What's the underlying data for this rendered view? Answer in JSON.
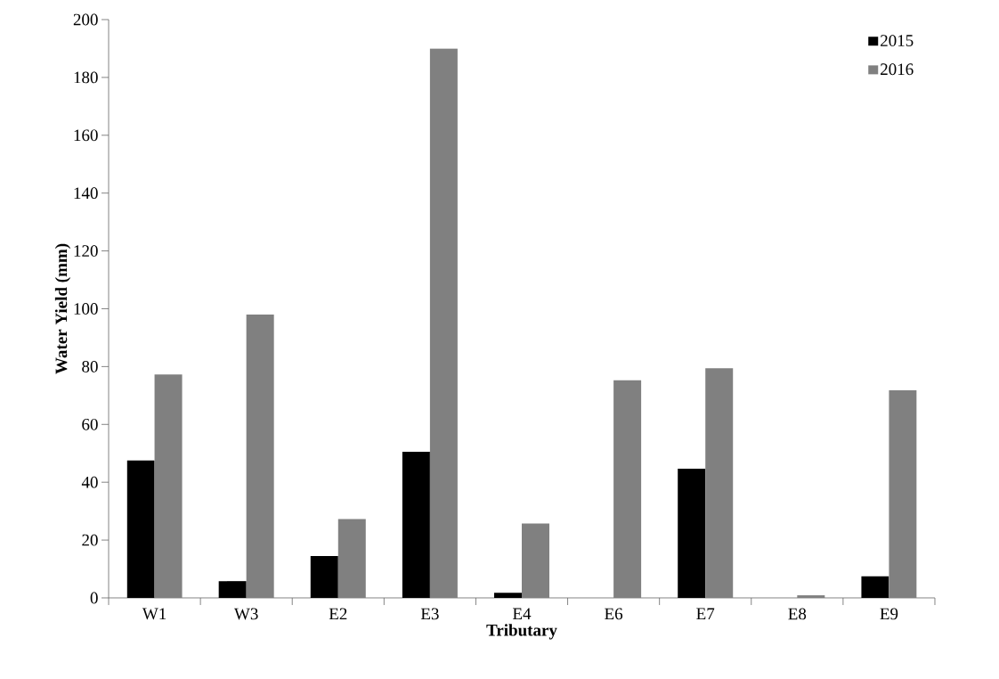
{
  "chart_data": {
    "type": "bar",
    "xlabel": "Tributary",
    "ylabel": "Water Yield (mm)",
    "categories": [
      "W1",
      "W3",
      "E2",
      "E3",
      "E4",
      "E6",
      "E7",
      "E8",
      "E9"
    ],
    "series": [
      {
        "name": "2015",
        "color": "#000000",
        "values": [
          47.5,
          5.8,
          14.5,
          50.5,
          1.8,
          0,
          44.7,
          0,
          7.5
        ]
      },
      {
        "name": "2016",
        "color": "#808080",
        "values": [
          77.3,
          98,
          27.3,
          190,
          25.7,
          75.3,
          79.4,
          0.9,
          71.8
        ]
      }
    ],
    "ylim": [
      0,
      200
    ],
    "yticks": [
      0,
      20,
      40,
      60,
      80,
      100,
      120,
      140,
      160,
      180,
      200
    ],
    "grid": false,
    "legend": "top right"
  }
}
